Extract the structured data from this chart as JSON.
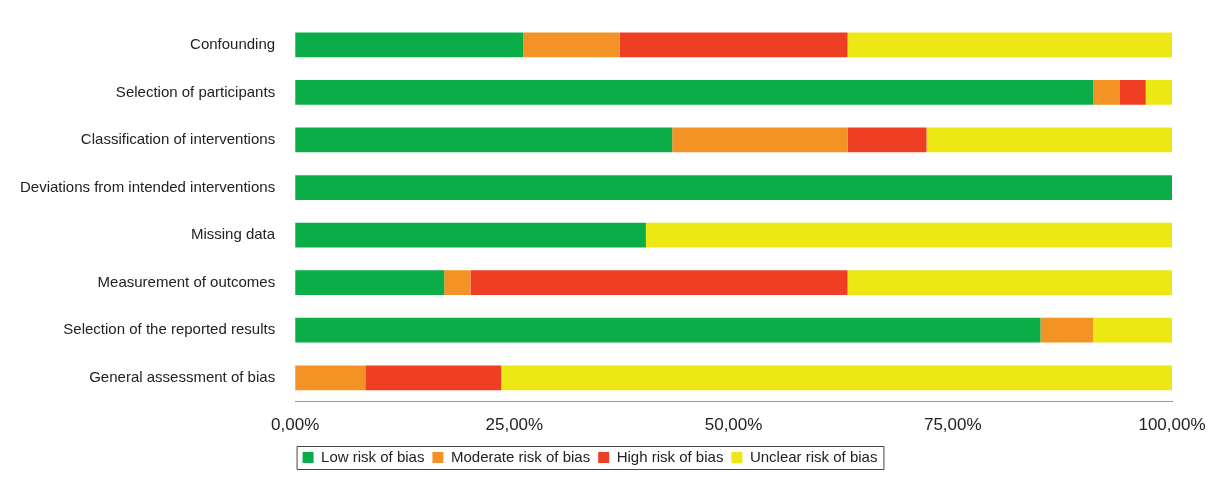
{
  "chart_data": {
    "type": "bar",
    "orientation": "horizontal",
    "stacked": true,
    "categories": [
      "Confounding",
      "Selection of participants",
      "Classification of interventions",
      "Deviations from intended interventions",
      "Missing data",
      "Measurement of outcomes",
      "Selection of the reported results",
      "General assessment of bias"
    ],
    "series": [
      {
        "name": "Low risk of bias",
        "color": "#0aad48",
        "values": [
          26,
          91,
          43,
          100,
          40,
          17,
          85,
          0
        ]
      },
      {
        "name": "Moderate risk of bias",
        "color": "#f39325",
        "values": [
          11,
          3,
          20,
          0,
          0,
          3,
          6,
          8
        ]
      },
      {
        "name": "High risk of bias",
        "color": "#ee3e23",
        "values": [
          26,
          3,
          9,
          0,
          0,
          43,
          0,
          15.5
        ]
      },
      {
        "name": "Unclear risk of bias",
        "color": "#ede714",
        "values": [
          37,
          3,
          28,
          0,
          60,
          37,
          9,
          76.5
        ]
      }
    ],
    "xlim": [
      0,
      100
    ],
    "xticks": [
      {
        "value": 0,
        "label": "0,00%"
      },
      {
        "value": 25,
        "label": "25,00%"
      },
      {
        "value": 50,
        "label": "50,00%"
      },
      {
        "value": 75,
        "label": "75,00%"
      },
      {
        "value": 100,
        "label": "100,00%"
      }
    ],
    "grid": false,
    "legend": "bottom"
  }
}
